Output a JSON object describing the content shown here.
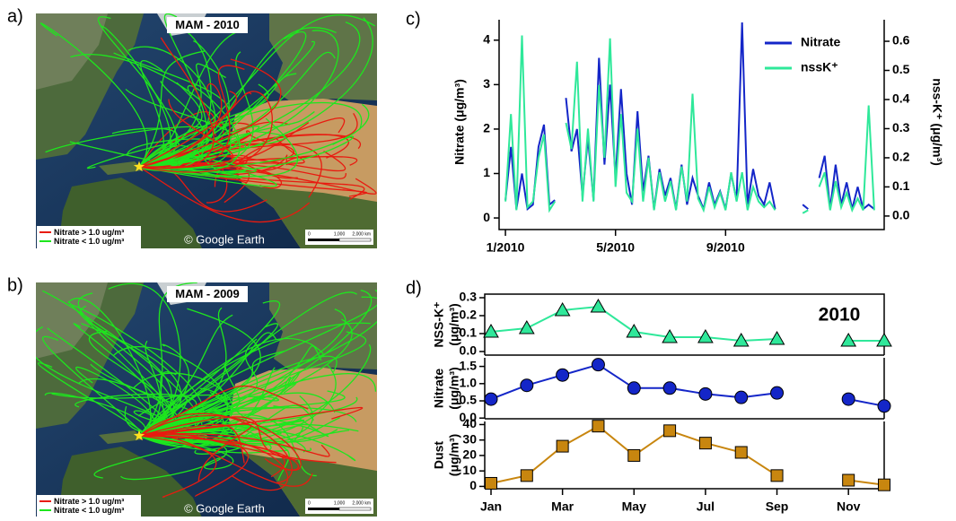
{
  "maps": [
    {
      "panel_label": "a)",
      "title": "MAM - 2010",
      "legend": [
        "Nitrate > 1.0 ug/m³",
        "Nitrate < 1.0 ug/m³"
      ],
      "credit": "© Google Earth",
      "scale_labels": [
        "0",
        "1,000",
        "2,000 km"
      ]
    },
    {
      "panel_label": "b)",
      "title": "MAM - 2009",
      "legend": [
        "Nitrate > 1.0 ug/m³",
        "Nitrate < 1.0 ug/m³"
      ],
      "credit": "© Google Earth",
      "scale_labels": [
        "0",
        "1,000",
        "2,000 km"
      ]
    }
  ],
  "chart_data": [
    {
      "type": "line",
      "panel_label": "c)",
      "x": [
        1.0,
        1.2,
        1.4,
        1.6,
        1.8,
        2.0,
        2.2,
        2.4,
        2.6,
        2.8,
        3.0,
        3.2,
        3.4,
        3.6,
        3.8,
        4.0,
        4.2,
        4.4,
        4.6,
        4.8,
        5.0,
        5.2,
        5.4,
        5.6,
        5.8,
        6.0,
        6.2,
        6.4,
        6.6,
        6.8,
        7.0,
        7.2,
        7.4,
        7.6,
        7.8,
        8.0,
        8.2,
        8.4,
        8.6,
        8.8,
        9.0,
        9.2,
        9.4,
        9.6,
        9.8,
        10.0,
        10.2,
        10.4,
        10.6,
        10.8,
        11.0,
        11.2,
        11.4,
        11.6,
        11.8,
        12.0,
        12.2,
        12.4,
        12.6,
        12.8,
        13.0,
        13.2,
        13.4,
        13.6,
        13.8,
        14.0,
        14.2,
        14.4
      ],
      "xlim": [
        0.9,
        14.6
      ],
      "xticks": [
        {
          "value": 1,
          "label": "1/2010"
        },
        {
          "value": 5,
          "label": "5/2010"
        },
        {
          "value": 9,
          "label": "9/2010"
        }
      ],
      "ylim": [
        -0.14,
        4.46
      ],
      "yticks": [
        0,
        1,
        2,
        3,
        4
      ],
      "y2lim": [
        -0.028,
        0.674
      ],
      "y2ticks": [
        {
          "value": 0,
          "label": "0.0"
        },
        0.1,
        0.2,
        0.3,
        0.4,
        0.5,
        0.6
      ],
      "ylabel": "Nitrate (μg/m³)",
      "y2label": "nss-K⁺ (μg/m³)",
      "legend": "upper right",
      "series": [
        {
          "name": "Nitrate",
          "color": "#1426c8",
          "values": [
            0.4,
            1.6,
            0.2,
            1.0,
            0.2,
            0.3,
            1.6,
            2.1,
            0.3,
            0.4,
            null,
            2.7,
            1.5,
            2.0,
            0.5,
            1.8,
            0.4,
            3.6,
            1.2,
            3.0,
            0.9,
            2.9,
            1.0,
            0.3,
            2.4,
            0.6,
            1.4,
            0.2,
            1.1,
            0.5,
            0.9,
            0.2,
            1.2,
            0.3,
            0.9,
            0.5,
            0.2,
            0.8,
            0.3,
            0.6,
            0.2,
            1.0,
            0.4,
            4.4,
            0.3,
            1.1,
            0.5,
            0.3,
            0.8,
            0.2,
            null,
            null,
            null,
            null,
            0.3,
            0.2,
            null,
            0.9,
            1.4,
            0.2,
            1.2,
            0.3,
            0.8,
            0.2,
            0.7,
            0.2,
            0.3,
            0.2
          ]
        },
        {
          "name": "nssK⁺",
          "color": "#2fe89a",
          "axis": "y2",
          "values": [
            0.05,
            0.35,
            0.02,
            0.62,
            0.03,
            0.05,
            0.2,
            0.28,
            0.02,
            0.05,
            null,
            0.32,
            0.23,
            0.53,
            0.05,
            0.3,
            0.05,
            0.45,
            0.2,
            0.61,
            0.1,
            0.35,
            0.08,
            0.05,
            0.3,
            0.05,
            0.2,
            0.02,
            0.15,
            0.05,
            0.12,
            0.02,
            0.17,
            0.05,
            0.42,
            0.06,
            0.02,
            0.1,
            0.03,
            0.08,
            0.02,
            0.15,
            0.05,
            0.15,
            0.02,
            0.1,
            0.05,
            0.03,
            0.05,
            0.02,
            null,
            null,
            null,
            null,
            0.01,
            0.02,
            null,
            0.1,
            0.15,
            0.02,
            0.12,
            0.03,
            0.08,
            0.02,
            0.06,
            0.02,
            0.38,
            0.02
          ]
        }
      ]
    },
    {
      "type": "line",
      "panel_label": "d)",
      "title": "2010",
      "categories": [
        "Jan",
        null,
        "Mar",
        null,
        "May",
        null,
        "Jul",
        null,
        "Sep",
        null,
        "Nov",
        null
      ],
      "panels": [
        {
          "ylabel": [
            "NSS-K⁺",
            "(μg/m³)"
          ],
          "ylim": [
            -0.02,
            0.32
          ],
          "yticks": [
            {
              "value": 0,
              "label": "0.0"
            },
            0.1,
            0.2,
            0.3
          ],
          "series": [
            {
              "color": "#2fe89a",
              "marker": "triangle",
              "values": [
                0.11,
                0.13,
                0.23,
                0.25,
                0.11,
                0.08,
                0.08,
                0.06,
                0.07,
                null,
                0.06,
                0.06
              ]
            }
          ]
        },
        {
          "ylabel": [
            "Nitrate",
            "(μg/m³)"
          ],
          "ylim": [
            -0.02,
            1.75
          ],
          "yticks": [
            {
              "value": 0,
              "label": "0.0"
            },
            {
              "value": 0.5,
              "label": "0.5"
            },
            {
              "value": 1,
              "label": "1.0"
            },
            {
              "value": 1.5,
              "label": "1.5"
            }
          ],
          "series": [
            {
              "color": "#1426c8",
              "marker": "circle",
              "values": [
                0.55,
                0.95,
                1.25,
                1.55,
                0.87,
                0.87,
                0.7,
                0.6,
                0.73,
                null,
                0.55,
                0.35
              ]
            }
          ]
        },
        {
          "ylabel": [
            "Dust",
            "(μg/m³)"
          ],
          "ylim": [
            -1.5,
            42
          ],
          "yticks": [
            0,
            10,
            20,
            30,
            40
          ],
          "series": [
            {
              "color": "#c8860f",
              "marker": "square",
              "values": [
                2,
                7,
                26,
                39,
                20,
                36,
                28,
                22,
                7,
                null,
                4,
                1
              ]
            }
          ]
        }
      ]
    }
  ]
}
